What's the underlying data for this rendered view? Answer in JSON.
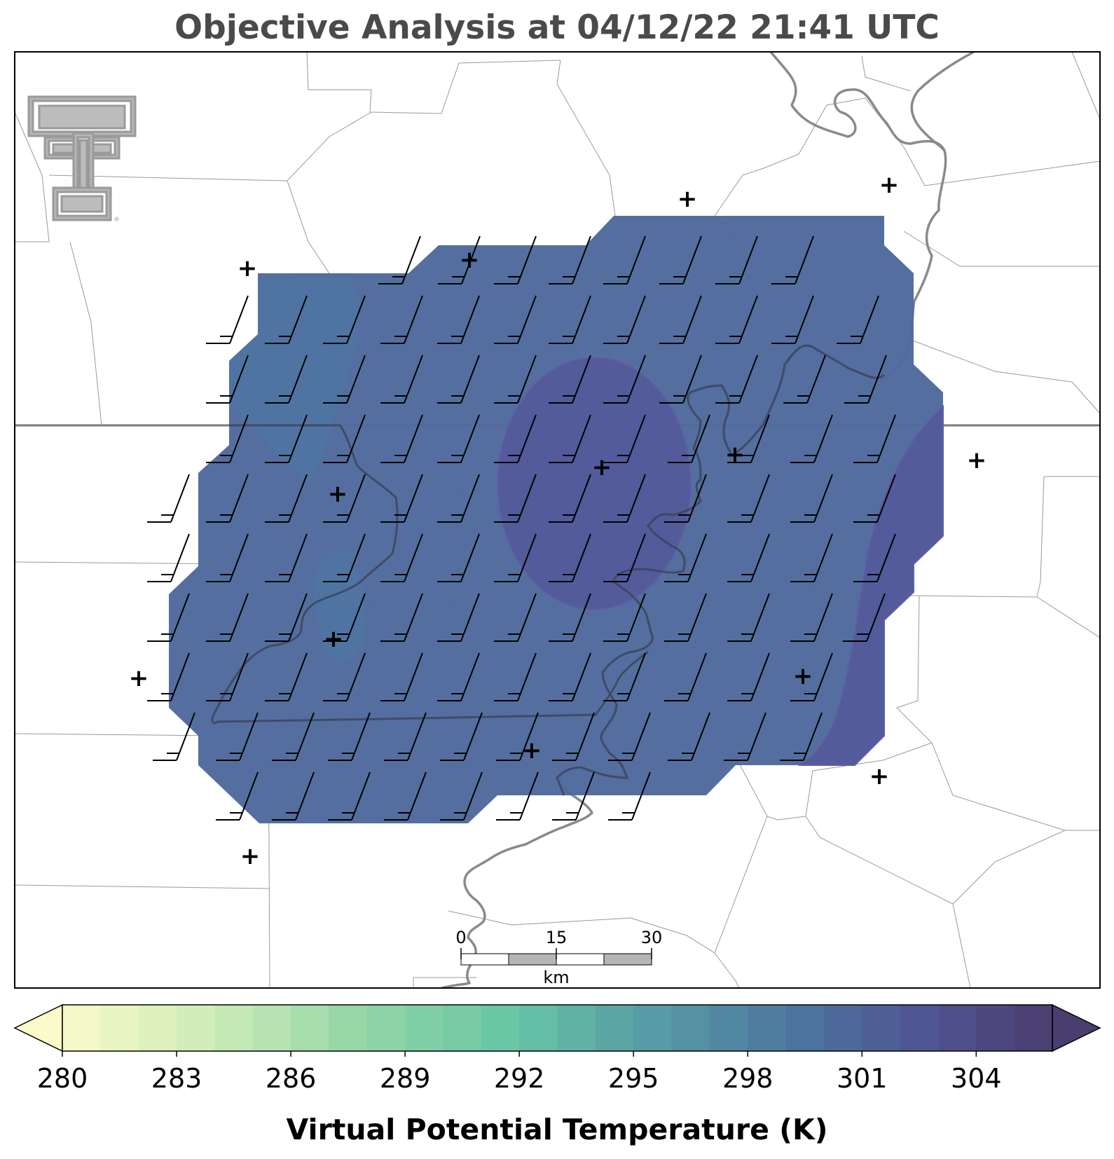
{
  "title": "Objective Analysis at 04/12/22 21:41 UTC",
  "logo": {
    "name": "texas-tech-double-t-logo",
    "mark": "®",
    "color": "#9a9a9a"
  },
  "map": {
    "field": "virtual potential temperature",
    "field_color": "#4e6a9c",
    "warm_core_color": "#54589a",
    "wind_barb_color": "#000000",
    "station_marker": "+",
    "scale_bar": {
      "ticks": [
        "0",
        "15",
        "30"
      ],
      "unit": "km"
    }
  },
  "colorbar": {
    "label": "Virtual Potential Temperature (K)",
    "min": 280,
    "max": 306,
    "step": 1,
    "tick_labels": [
      "280",
      "283",
      "286",
      "289",
      "292",
      "295",
      "298",
      "301",
      "304"
    ],
    "extend": "both",
    "colormap": "crest (yellow-green-blue-purple)"
  }
}
